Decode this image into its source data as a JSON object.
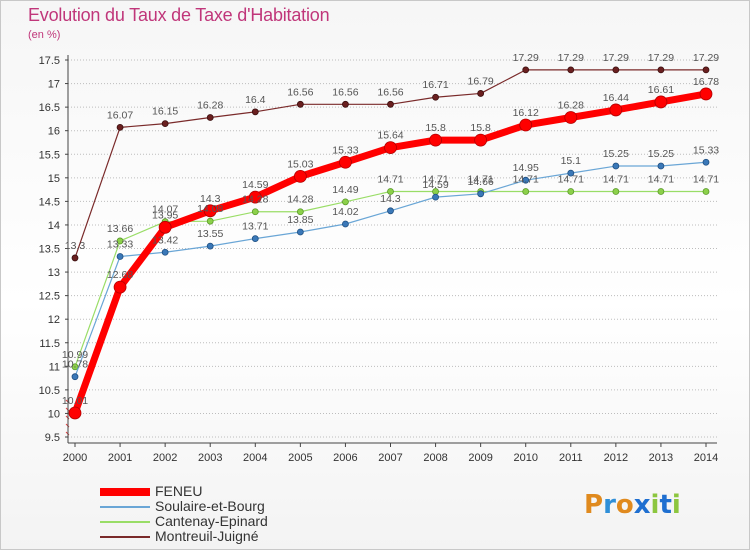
{
  "title": "Evolution du Taux de Taxe d'Habitation",
  "unit_label": "(en %)",
  "logo": {
    "letters": [
      "P",
      "r",
      "o",
      "x",
      "i",
      "t",
      "i"
    ],
    "colors": [
      "#e08a1e",
      "#2f8fd8",
      "#e08a1e",
      "#1f6fd0",
      "#8cc63f",
      "#1f6fd0",
      "#8cc63f"
    ]
  },
  "chart_data": {
    "type": "line",
    "title": "Evolution du Taux de Taxe d'Habitation",
    "ylabel": "(en %)",
    "xlabel": "",
    "x": [
      "2000",
      "2001",
      "2002",
      "2003",
      "2004",
      "2005",
      "2006",
      "2007",
      "2008",
      "2009",
      "2010",
      "2011",
      "2012",
      "2013",
      "2014"
    ],
    "ylim": [
      9.5,
      17.5
    ],
    "yticks": [
      "9.5",
      "10",
      "10.5",
      "11",
      "11.5",
      "12",
      "12.5",
      "13",
      "13.5",
      "14",
      "14.5",
      "15",
      "15.5",
      "16",
      "16.5",
      "17",
      "17.5"
    ],
    "grid": "horizontal dotted",
    "legend_position": "bottom-left",
    "series": [
      {
        "name": "FENEU",
        "color": "#ff0000",
        "values": [
          10.01,
          12.68,
          13.95,
          14.3,
          14.59,
          15.03,
          15.33,
          15.64,
          15.8,
          15.8,
          16.12,
          16.28,
          16.44,
          16.61,
          16.78
        ],
        "labels": [
          "10.01",
          "12.68",
          "13.95",
          "14.3",
          "14.59",
          "15.03",
          "15.33",
          "15.64",
          "15.8",
          "15.8",
          "16.12",
          "16.28",
          "16.44",
          "16.61",
          "16.78"
        ]
      },
      {
        "name": "Soulaire-et-Bourg",
        "color": "#6aa6d6",
        "values": [
          10.78,
          13.33,
          13.42,
          13.55,
          13.71,
          13.85,
          14.02,
          14.3,
          14.59,
          14.66,
          14.95,
          15.1,
          15.25,
          15.25,
          15.33
        ],
        "labels": [
          "10.78",
          "13.33",
          "13.42",
          "13.55",
          "13.71",
          "13.85",
          "14.02",
          "14.3",
          "14.59",
          "14.66",
          "14.95",
          "15.1",
          "15.25",
          "15.25",
          "15.33"
        ]
      },
      {
        "name": "Cantenay-Epinard",
        "color": "#99dd66",
        "values": [
          10.99,
          13.66,
          14.07,
          14.08,
          14.28,
          14.28,
          14.49,
          14.71,
          14.71,
          14.71,
          14.71,
          14.71,
          14.71,
          14.71,
          14.71
        ],
        "labels": [
          "10.99",
          "13.66",
          "14.07",
          "14.08",
          "14.28",
          "14.28",
          "14.49",
          "14.71",
          "14.71",
          "14.71",
          "14.71",
          "14.71",
          "14.71",
          "14.71",
          "14.71"
        ]
      },
      {
        "name": "Montreuil-Juigné",
        "color": "#7a2a2a",
        "values": [
          13.3,
          16.07,
          16.15,
          16.28,
          16.4,
          16.56,
          16.56,
          16.56,
          16.71,
          16.79,
          17.29,
          17.29,
          17.29,
          17.29,
          17.29
        ],
        "labels": [
          "13.3",
          "16.07",
          "16.15",
          "16.28",
          "16.4",
          "16.56",
          "16.56",
          "16.56",
          "16.71",
          "16.79",
          "17.29",
          "17.29",
          "17.29",
          "17.29",
          "17.29"
        ]
      }
    ]
  }
}
